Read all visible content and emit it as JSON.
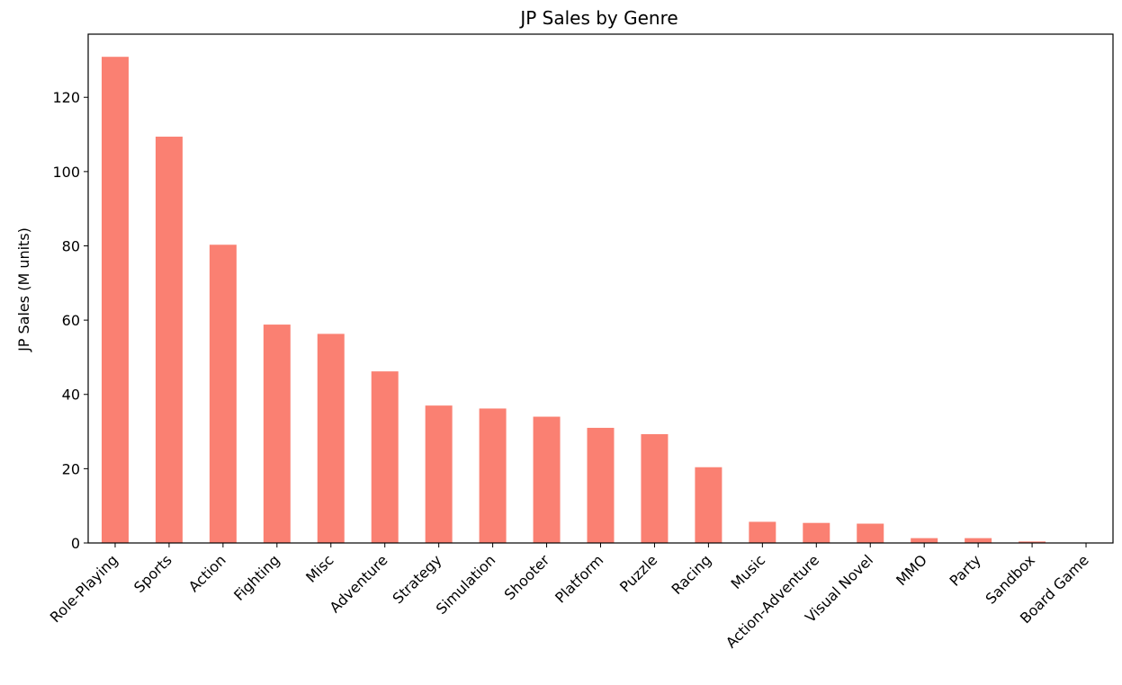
{
  "chart_data": {
    "type": "bar",
    "title": "JP Sales by Genre",
    "xlabel": "",
    "ylabel": "JP Sales (M units)",
    "ylim": [
      0,
      137
    ],
    "yticks": [
      0,
      20,
      40,
      60,
      80,
      100,
      120
    ],
    "grid": false,
    "bar_color": "#fa8072",
    "categories": [
      "Role-Playing",
      "Sports",
      "Action",
      "Fighting",
      "Misc",
      "Adventure",
      "Strategy",
      "Simulation",
      "Shooter",
      "Platform",
      "Puzzle",
      "Racing",
      "Music",
      "Action-Adventure",
      "Visual Novel",
      "MMO",
      "Party",
      "Sandbox",
      "Board Game"
    ],
    "values": [
      130.9,
      109.4,
      80.3,
      58.8,
      56.3,
      46.2,
      37.0,
      36.2,
      34.0,
      31.0,
      29.3,
      20.4,
      5.7,
      5.4,
      5.2,
      1.3,
      1.3,
      0.4,
      0.0
    ]
  }
}
